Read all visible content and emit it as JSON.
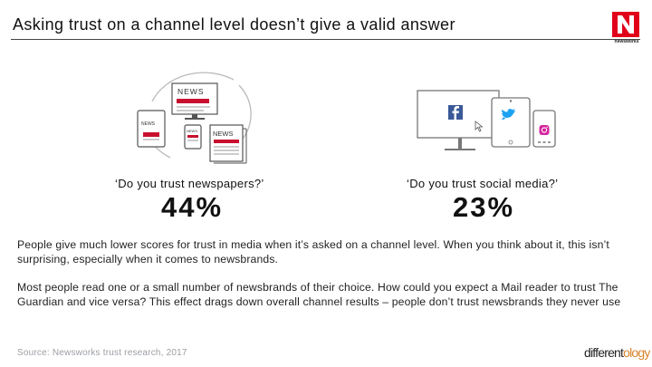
{
  "slide": {
    "title": "Asking trust on a channel level doesn’t give a valid answer"
  },
  "logo": {
    "label": "newsworks",
    "icon": "newsworks-n-logo",
    "color": "#e1001a"
  },
  "left_panel": {
    "illustration": "newspaper-devices-illustration",
    "news_labels": [
      "NEWS",
      "NEWS",
      "NEWS",
      "NEWS"
    ],
    "question": "‘Do you trust newspapers?’",
    "value": "44%"
  },
  "right_panel": {
    "illustration": "social-media-devices-illustration",
    "question": "‘Do you trust social media?’",
    "value": "23%"
  },
  "paragraphs": [
    "People give much lower scores for trust in media when it’s asked on a channel level. When you think about it, this isn’t surprising, especially when it comes to newsbrands.",
    "Most people read one or a small number of newsbrands of their choice. How could you expect a Mail reader to trust The Guardian and vice versa? This effect drags down overall channel results – people don’t trust newsbrands they never use"
  ],
  "source": "Source: Newsworks trust research, 2017",
  "brand": {
    "prefix": "different",
    "suffix": "ology",
    "accent_color": "#d9822b"
  }
}
